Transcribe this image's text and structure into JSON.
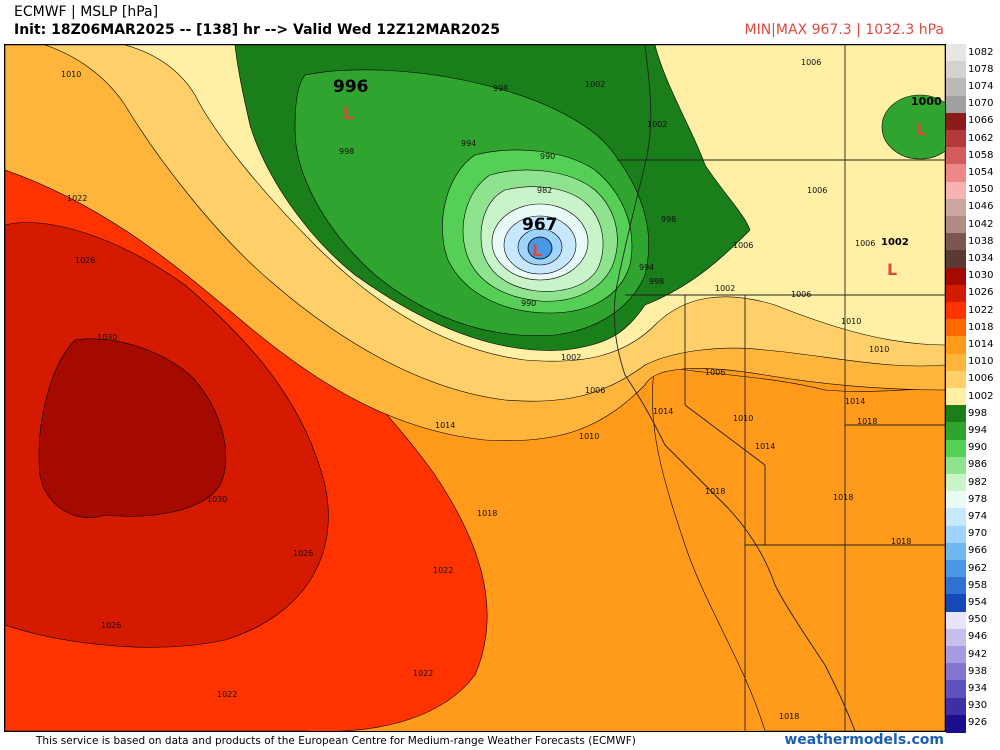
{
  "header": {
    "title": "ECMWF | MSLP [hPa]",
    "init_line": "Init: 18Z06MAR2025 -- [138] hr --> Valid Wed 12Z12MAR2025",
    "minmax": "MIN|MAX 967.3 | 1032.3 hPa"
  },
  "footer": {
    "credit": "This service is based on data and products of the European Centre for Medium-range Weather Forecasts (ECMWF)",
    "brand": "weathermodels.com"
  },
  "map": {
    "centers": [
      {
        "kind": "low",
        "symbol": "L",
        "value": "996",
        "color": "#e0483c"
      },
      {
        "kind": "low",
        "symbol": "L",
        "value": "967",
        "color": "#e0483c"
      },
      {
        "kind": "low",
        "symbol": "L",
        "value": "1000",
        "color": "#e0483c"
      },
      {
        "kind": "low",
        "symbol": "L",
        "value": "1002",
        "color": "#e0483c"
      }
    ],
    "isobar_labels": [
      "1010",
      "1022",
      "1026",
      "1030",
      "1030",
      "1026",
      "1026",
      "1022",
      "1022",
      "1022",
      "1018",
      "1014",
      "1010",
      "1006",
      "1002",
      "998",
      "994",
      "990",
      "982",
      "990",
      "994",
      "998",
      "998",
      "1002",
      "1006",
      "1006",
      "1006",
      "1006",
      "1010",
      "1010",
      "1014",
      "1014",
      "1018",
      "1018",
      "1018",
      "1018",
      "1018",
      "1014",
      "1010",
      "1006",
      "1002",
      "998",
      "1002",
      "1006"
    ]
  },
  "legend": {
    "items": [
      {
        "label": "1082",
        "color": "#e6e6e6"
      },
      {
        "label": "1078",
        "color": "#d2d2d2"
      },
      {
        "label": "1074",
        "color": "#b9b9b9"
      },
      {
        "label": "1070",
        "color": "#a0a0a0"
      },
      {
        "label": "1066",
        "color": "#8c1c1c"
      },
      {
        "label": "1062",
        "color": "#b23a3a"
      },
      {
        "label": "1058",
        "color": "#d45b5b"
      },
      {
        "label": "1054",
        "color": "#ee8888"
      },
      {
        "label": "1050",
        "color": "#f7b3b3"
      },
      {
        "label": "1046",
        "color": "#caa6a0"
      },
      {
        "label": "1042",
        "color": "#b08c84"
      },
      {
        "label": "1038",
        "color": "#7a5750"
      },
      {
        "label": "1034",
        "color": "#5c3a34"
      },
      {
        "label": "1030",
        "color": "#a40a00"
      },
      {
        "label": "1026",
        "color": "#d41a00"
      },
      {
        "label": "1022",
        "color": "#ff3300"
      },
      {
        "label": "1018",
        "color": "#ff6a00"
      },
      {
        "label": "1014",
        "color": "#ff9a1a"
      },
      {
        "label": "1010",
        "color": "#ffb43c"
      },
      {
        "label": "1006",
        "color": "#ffd06a"
      },
      {
        "label": "1002",
        "color": "#fff0a6"
      },
      {
        "label": "998",
        "color": "#1a7e1a"
      },
      {
        "label": "994",
        "color": "#2fa52f"
      },
      {
        "label": "990",
        "color": "#55cf55"
      },
      {
        "label": "986",
        "color": "#8fe38f"
      },
      {
        "label": "982",
        "color": "#c9f3c9"
      },
      {
        "label": "978",
        "color": "#e8fbf6"
      },
      {
        "label": "974",
        "color": "#c8e8ff"
      },
      {
        "label": "970",
        "color": "#9fd4ff"
      },
      {
        "label": "966",
        "color": "#6fb8f0"
      },
      {
        "label": "962",
        "color": "#4a98e4"
      },
      {
        "label": "958",
        "color": "#2e72d4"
      },
      {
        "label": "954",
        "color": "#1548b8"
      },
      {
        "label": "950",
        "color": "#e6e6fa"
      },
      {
        "label": "946",
        "color": "#c6c0ef"
      },
      {
        "label": "942",
        "color": "#a49be0"
      },
      {
        "label": "938",
        "color": "#8276d0"
      },
      {
        "label": "934",
        "color": "#5e52bf"
      },
      {
        "label": "930",
        "color": "#3c30a8"
      },
      {
        "label": "926",
        "color": "#1a108e"
      }
    ]
  }
}
